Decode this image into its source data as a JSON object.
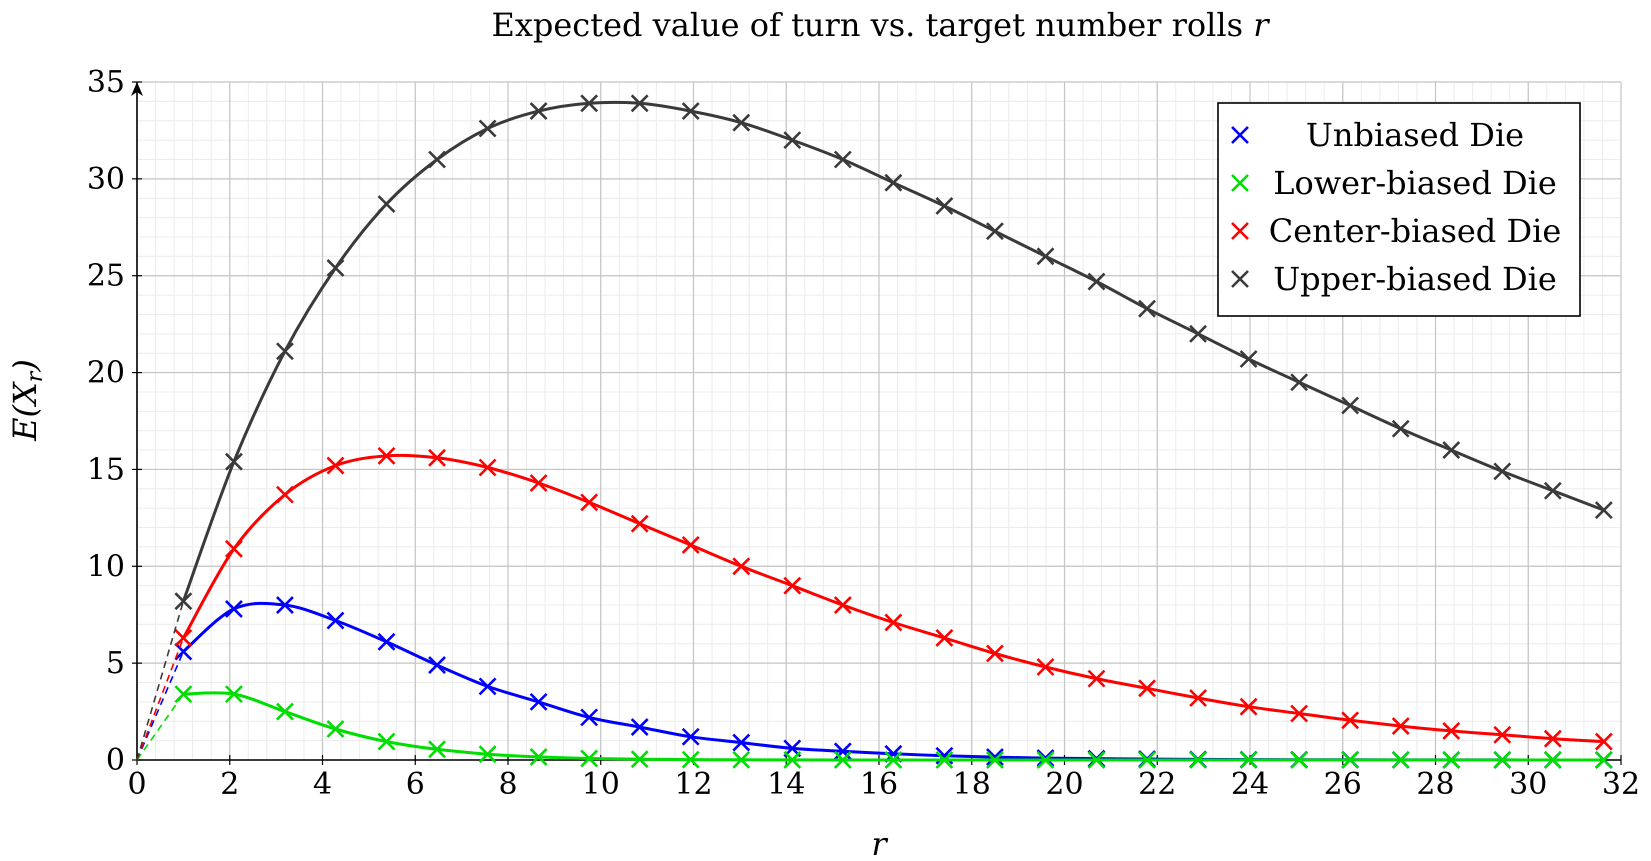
{
  "chart_data": {
    "type": "line",
    "title": "Expected value of turn vs. target number rolls r",
    "xlabel": "r",
    "ylabel": "E(X_r)",
    "xlim": [
      0,
      32
    ],
    "ylim": [
      0,
      35
    ],
    "xticks": [
      0,
      2,
      4,
      6,
      8,
      10,
      12,
      14,
      16,
      18,
      20,
      22,
      24,
      26,
      28,
      30,
      32
    ],
    "yticks": [
      0,
      5,
      10,
      15,
      20,
      25,
      30,
      35
    ],
    "grid": true,
    "legend_position": "top-right",
    "series": [
      {
        "name": "Unbiased Die",
        "color": "#0000ff",
        "marker": "x",
        "x": [
          1,
          2.09,
          3.19,
          4.28,
          5.38,
          6.47,
          7.56,
          8.66,
          9.75,
          10.84,
          11.94,
          13.03,
          14.13,
          15.22,
          16.31,
          17.41,
          18.5,
          19.59,
          20.69,
          21.78,
          22.88,
          23.97,
          25.06,
          26.16,
          27.25,
          28.34,
          29.44,
          30.53,
          31.63
        ],
        "values": [
          5.6,
          7.8,
          8.0,
          7.2,
          6.1,
          4.9,
          3.8,
          3.0,
          2.2,
          1.7,
          1.2,
          0.9,
          0.6,
          0.45,
          0.32,
          0.22,
          0.15,
          0.1,
          0.07,
          0.05,
          0.03,
          0.02,
          0.015,
          0.01,
          0.007,
          0.005,
          0.003,
          0.002,
          0.001
        ]
      },
      {
        "name": "Lower-biased Die",
        "color": "#00dd00",
        "marker": "x",
        "x": [
          1,
          2.09,
          3.19,
          4.28,
          5.38,
          6.47,
          7.56,
          8.66,
          9.75,
          10.84,
          11.94,
          13.03,
          14.13,
          15.22,
          16.31,
          17.41,
          18.5,
          19.59,
          20.69,
          21.78,
          22.88,
          23.97,
          25.06,
          26.16,
          27.25,
          28.34,
          29.44,
          30.53,
          31.63
        ],
        "values": [
          3.4,
          3.4,
          2.5,
          1.6,
          0.95,
          0.55,
          0.3,
          0.16,
          0.08,
          0.04,
          0.02,
          0.01,
          0.005,
          0.002,
          0.001,
          0,
          0,
          0,
          0,
          0,
          0,
          0,
          0,
          0,
          0,
          0,
          0,
          0,
          0
        ]
      },
      {
        "name": "Center-biased Die",
        "color": "#ff0000",
        "marker": "x",
        "x": [
          1,
          2.09,
          3.19,
          4.28,
          5.38,
          6.47,
          7.56,
          8.66,
          9.75,
          10.84,
          11.94,
          13.03,
          14.13,
          15.22,
          16.31,
          17.41,
          18.5,
          19.59,
          20.69,
          21.78,
          22.88,
          23.97,
          25.06,
          26.16,
          27.25,
          28.34,
          29.44,
          30.53,
          31.63
        ],
        "values": [
          6.3,
          10.9,
          13.7,
          15.2,
          15.7,
          15.6,
          15.1,
          14.3,
          13.3,
          12.2,
          11.1,
          10.0,
          9.0,
          8.0,
          7.1,
          6.3,
          5.5,
          4.8,
          4.2,
          3.7,
          3.2,
          2.75,
          2.4,
          2.05,
          1.75,
          1.5,
          1.3,
          1.1,
          0.95
        ]
      },
      {
        "name": "Upper-biased Die",
        "color": "#3a3a3a",
        "marker": "x",
        "x": [
          1,
          2.09,
          3.19,
          4.28,
          5.38,
          6.47,
          7.56,
          8.66,
          9.75,
          10.84,
          11.94,
          13.03,
          14.13,
          15.22,
          16.31,
          17.41,
          18.5,
          19.59,
          20.69,
          21.78,
          22.88,
          23.97,
          25.06,
          26.16,
          27.25,
          28.34,
          29.44,
          30.53,
          31.63
        ],
        "values": [
          8.2,
          15.4,
          21.1,
          25.4,
          28.7,
          31.0,
          32.6,
          33.5,
          33.9,
          33.9,
          33.5,
          32.9,
          32.0,
          31.0,
          29.8,
          28.6,
          27.3,
          26.0,
          24.7,
          23.3,
          22.0,
          20.7,
          19.5,
          18.3,
          17.1,
          16.0,
          14.9,
          13.9,
          12.9
        ]
      }
    ]
  }
}
